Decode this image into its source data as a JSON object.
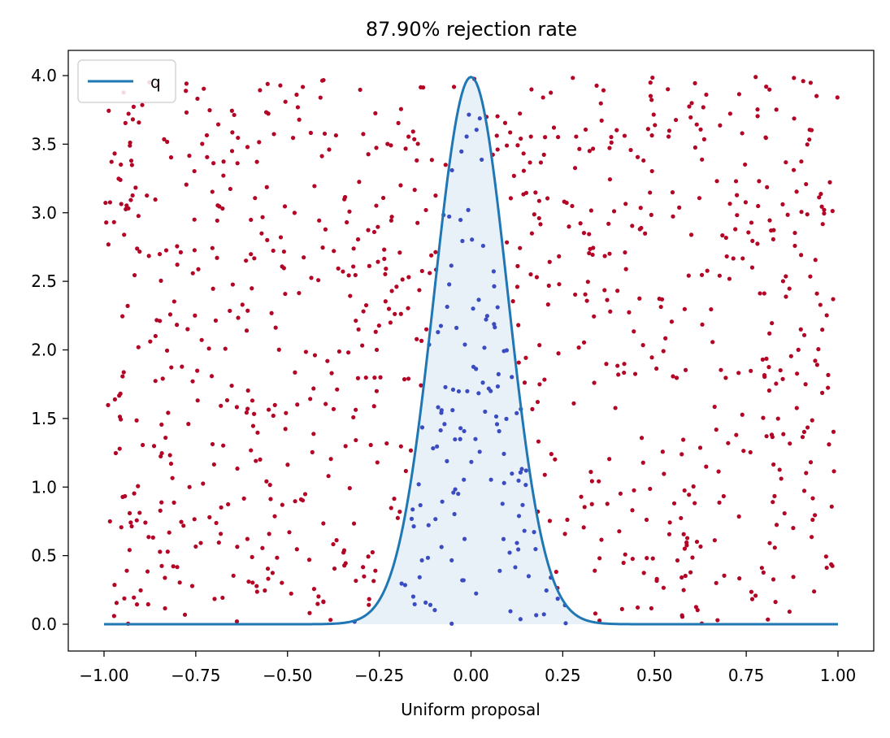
{
  "chart_data": {
    "type": "scatter",
    "title": "87.90% rejection rate",
    "xlabel": "Uniform proposal",
    "ylabel": "",
    "xlim": [
      -1.1,
      1.1
    ],
    "ylim": [
      -0.2,
      4.18
    ],
    "x_ticks": [
      "−1.00",
      "−0.75",
      "−0.50",
      "−0.25",
      "0.00",
      "0.25",
      "0.50",
      "0.75",
      "1.00"
    ],
    "x_tick_values": [
      -1.0,
      -0.75,
      -0.5,
      -0.25,
      0.0,
      0.25,
      0.5,
      0.75,
      1.0
    ],
    "y_ticks": [
      "0.0",
      "0.5",
      "1.0",
      "1.5",
      "2.0",
      "2.5",
      "3.0",
      "3.5",
      "4.0"
    ],
    "y_tick_values": [
      0.0,
      0.5,
      1.0,
      1.5,
      2.0,
      2.5,
      3.0,
      3.5,
      4.0
    ],
    "grid": false,
    "legend": {
      "placement": "top-left",
      "entries": [
        "q"
      ]
    },
    "colors": {
      "curve": "#1f77b4",
      "fill": "#e8f0f8",
      "rejected": "#b40426",
      "accepted": "#3b4cc0"
    },
    "series": [
      {
        "name": "q",
        "kind": "line",
        "distribution": "normal",
        "mean": 0.0,
        "std": 0.1,
        "x_range": [
          -1.0,
          1.0
        ]
      }
    ],
    "rejection_rate_percent": 87.9,
    "num_points": 1000,
    "point_x_range": [
      -1.0,
      1.0
    ],
    "point_y_range": [
      0.0,
      3.99
    ]
  }
}
